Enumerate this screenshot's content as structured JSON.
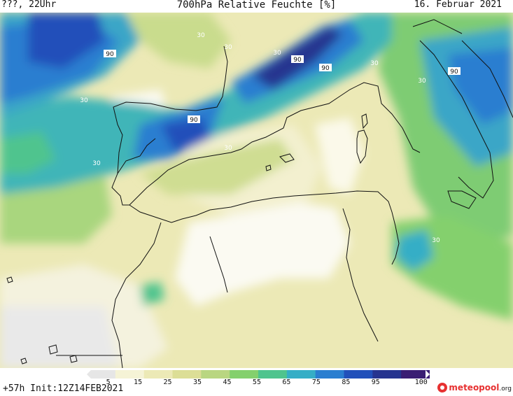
{
  "header": {
    "left": "???, 22Uhr",
    "center": "700hPa Relative Feuchte [%]",
    "right": "16. Februar 2021"
  },
  "footer": {
    "run": "+57h Init:12Z14FEB2021",
    "logo_main": "meteopool",
    "logo_tld": ".org"
  },
  "legend": {
    "ticks": [
      "5",
      "15",
      "25",
      "35",
      "45",
      "55",
      "65",
      "75",
      "85",
      "95",
      "100"
    ],
    "colors": [
      "#e6e6e6",
      "#f5f3d6",
      "#ece9b6",
      "#dcde96",
      "#b9d681",
      "#84d06d",
      "#4fc48e",
      "#35aec6",
      "#2a7ed0",
      "#2150ba",
      "#26348f",
      "#3a1d73"
    ]
  },
  "contour_labels": [
    "90",
    "90",
    "90",
    "90",
    "90",
    "30",
    "30",
    "30",
    "30",
    "30",
    "30",
    "30",
    "30",
    "30"
  ]
}
